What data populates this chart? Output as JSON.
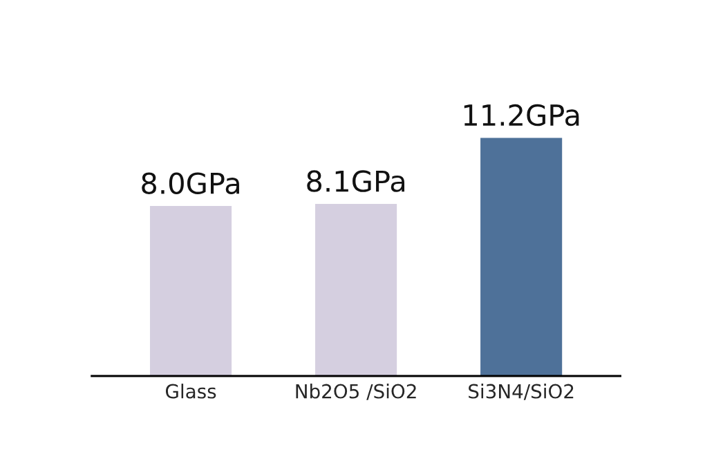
{
  "chart_data": {
    "type": "bar",
    "categories": [
      "Glass",
      "Nb2O5 /SiO2",
      "Si3N4/SiO2"
    ],
    "values": [
      8.0,
      8.1,
      11.2
    ],
    "colors": [
      "#d5cfe0",
      "#d5cfe0",
      "#4e7199"
    ],
    "value_labels": [
      "8.0GPa",
      "8.1GPa",
      "11.2GPa"
    ],
    "grid": false
  }
}
